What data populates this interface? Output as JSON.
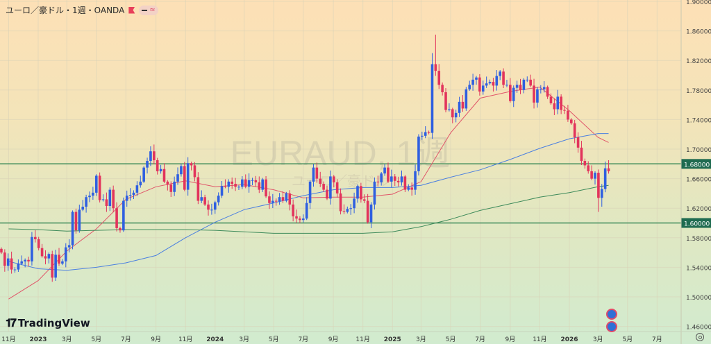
{
  "header": {
    "symbol_title": "ユーロ／豪ドル・1週・OANDA",
    "flag_icon": "flag-icon",
    "indicator_pill_icons": [
      "dash-icon",
      "approx-icon"
    ],
    "indicator_glyph": "≈"
  },
  "watermark": {
    "line1": "EURAUD, 1週",
    "line2": "ユーロ／豪ドル"
  },
  "logo": {
    "mark": "17",
    "text": "TradingView"
  },
  "colors": {
    "up": "#2f5fe0",
    "down": "#e2345c",
    "ma_fast": "#e0566a",
    "ma_mid": "#4a7fe0",
    "ma_slow": "#3d8a5a",
    "hline": "#3b8a58",
    "hline_label_bg": "#1f6b50"
  },
  "chart_data": {
    "type": "candlestick",
    "symbol": "EURAUD",
    "timeframe": "1週",
    "ylim": [
      1.457,
      1.902
    ],
    "y_ticks": [
      "1.90000",
      "1.86000",
      "1.82000",
      "1.78000",
      "1.74000",
      "1.70000",
      "1.66000",
      "1.62000",
      "1.58000",
      "1.54000",
      "1.50000",
      "1.46000"
    ],
    "x_ticks": [
      {
        "label": "11月",
        "date": "2022-11-01",
        "bold": false
      },
      {
        "label": "2023",
        "date": "2023-01-01",
        "bold": true
      },
      {
        "label": "3月",
        "date": "2023-03-01",
        "bold": false
      },
      {
        "label": "5月",
        "date": "2023-05-01",
        "bold": false
      },
      {
        "label": "7月",
        "date": "2023-07-01",
        "bold": false
      },
      {
        "label": "9月",
        "date": "2023-09-01",
        "bold": false
      },
      {
        "label": "11月",
        "date": "2023-11-01",
        "bold": false
      },
      {
        "label": "2024",
        "date": "2024-01-01",
        "bold": true
      },
      {
        "label": "3月",
        "date": "2024-03-01",
        "bold": false
      },
      {
        "label": "5月",
        "date": "2024-05-01",
        "bold": false
      },
      {
        "label": "7月",
        "date": "2024-07-01",
        "bold": false
      },
      {
        "label": "9月",
        "date": "2024-09-01",
        "bold": false
      },
      {
        "label": "11月",
        "date": "2024-11-01",
        "bold": false
      },
      {
        "label": "2025",
        "date": "2025-01-01",
        "bold": true
      },
      {
        "label": "3月",
        "date": "2025-03-01",
        "bold": false
      },
      {
        "label": "5月",
        "date": "2025-05-01",
        "bold": false
      },
      {
        "label": "7月",
        "date": "2025-07-01",
        "bold": false
      },
      {
        "label": "9月",
        "date": "2025-09-01",
        "bold": false
      },
      {
        "label": "11月",
        "date": "2025-11-01",
        "bold": false
      },
      {
        "label": "2026",
        "date": "2026-01-01",
        "bold": true
      },
      {
        "label": "3月",
        "date": "2026-03-01",
        "bold": false
      },
      {
        "label": "5月",
        "date": "2026-05-01",
        "bold": false
      },
      {
        "label": "7月",
        "date": "2026-07-01",
        "bold": false
      }
    ],
    "first_open": 1.565,
    "closes": [
      1.56,
      1.542,
      1.552,
      1.537,
      1.537,
      1.545,
      1.548,
      1.55,
      1.548,
      1.581,
      1.578,
      1.566,
      1.555,
      1.552,
      1.558,
      1.526,
      1.557,
      1.545,
      1.548,
      1.567,
      1.57,
      1.615,
      1.59,
      1.618,
      1.622,
      1.635,
      1.637,
      1.641,
      1.664,
      1.631,
      1.632,
      1.623,
      1.645,
      1.62,
      1.593,
      1.59,
      1.63,
      1.637,
      1.638,
      1.641,
      1.651,
      1.656,
      1.675,
      1.684,
      1.697,
      1.685,
      1.67,
      1.673,
      1.656,
      1.652,
      1.642,
      1.656,
      1.666,
      1.677,
      1.645,
      1.681,
      1.678,
      1.662,
      1.63,
      1.635,
      1.625,
      1.618,
      1.618,
      1.628,
      1.637,
      1.65,
      1.649,
      1.656,
      1.653,
      1.649,
      1.649,
      1.659,
      1.649,
      1.658,
      1.658,
      1.655,
      1.645,
      1.659,
      1.636,
      1.627,
      1.63,
      1.629,
      1.635,
      1.63,
      1.64,
      1.625,
      1.609,
      1.606,
      1.604,
      1.606,
      1.627,
      1.656,
      1.675,
      1.66,
      1.653,
      1.645,
      1.633,
      1.663,
      1.655,
      1.64,
      1.616,
      1.615,
      1.619,
      1.62,
      1.633,
      1.65,
      1.632,
      1.63,
      1.601,
      1.625,
      1.656,
      1.655,
      1.667,
      1.675,
      1.656,
      1.663,
      1.657,
      1.655,
      1.663,
      1.645,
      1.648,
      1.645,
      1.67,
      1.717,
      1.718,
      1.723,
      1.722,
      1.815,
      1.806,
      1.787,
      1.777,
      1.753,
      1.754,
      1.743,
      1.749,
      1.764,
      1.755,
      1.781,
      1.787,
      1.794,
      1.797,
      1.778,
      1.786,
      1.789,
      1.791,
      1.786,
      1.799,
      1.805,
      1.787,
      1.787,
      1.765,
      1.783,
      1.787,
      1.78,
      1.794,
      1.794,
      1.786,
      1.763,
      1.781,
      1.781,
      1.784,
      1.771,
      1.762,
      1.754,
      1.771,
      1.753,
      1.752,
      1.74,
      1.735,
      1.716,
      1.702,
      1.684,
      1.678,
      1.67,
      1.66,
      1.668,
      1.634,
      1.646,
      1.674,
      1.67
    ],
    "last_candle_date": "2026-03-23",
    "wick_extremes": [
      {
        "from_end": 53,
        "high": 1.83
      },
      {
        "from_end": 52,
        "high": 1.855
      },
      {
        "from_end": 4,
        "low": 1.615
      },
      {
        "from_end": 3,
        "low": 1.622
      },
      {
        "from_end": 1,
        "high": 1.685
      }
    ],
    "moving_averages": [
      {
        "key": "ma_fast",
        "dates": [
          "2022-11-01",
          "2023-01-01",
          "2023-03-01",
          "2023-05-01",
          "2023-07-01",
          "2023-09-01",
          "2023-11-01",
          "2024-01-01",
          "2024-03-01",
          "2024-05-01",
          "2024-07-01",
          "2024-09-01",
          "2024-11-01",
          "2025-01-01",
          "2025-03-01",
          "2025-05-01",
          "2025-07-01",
          "2025-09-01",
          "2025-11-01",
          "2026-01-01",
          "2026-03-01",
          "2026-03-23"
        ],
        "values": [
          1.497,
          1.522,
          1.562,
          1.592,
          1.632,
          1.649,
          1.657,
          1.649,
          1.652,
          1.645,
          1.634,
          1.635,
          1.635,
          1.639,
          1.656,
          1.722,
          1.769,
          1.778,
          1.784,
          1.752,
          1.716,
          1.709
        ]
      },
      {
        "key": "ma_mid",
        "dates": [
          "2022-11-01",
          "2023-01-01",
          "2023-03-01",
          "2023-05-01",
          "2023-07-01",
          "2023-09-01",
          "2023-11-01",
          "2024-01-01",
          "2024-03-01",
          "2024-05-01",
          "2024-07-01",
          "2024-09-01",
          "2024-11-01",
          "2025-01-01",
          "2025-03-01",
          "2025-05-01",
          "2025-07-01",
          "2025-09-01",
          "2025-11-01",
          "2026-01-01",
          "2026-03-01",
          "2026-03-23"
        ],
        "values": [
          1.548,
          1.538,
          1.536,
          1.54,
          1.546,
          1.556,
          1.58,
          1.601,
          1.618,
          1.627,
          1.637,
          1.645,
          1.648,
          1.648,
          1.651,
          1.662,
          1.672,
          1.686,
          1.701,
          1.714,
          1.721,
          1.721
        ]
      },
      {
        "key": "ma_slow",
        "dates": [
          "2022-11-01",
          "2023-01-01",
          "2023-03-01",
          "2023-05-01",
          "2023-07-01",
          "2023-09-01",
          "2023-11-01",
          "2024-01-01",
          "2024-03-01",
          "2024-05-01",
          "2024-07-01",
          "2024-09-01",
          "2024-11-01",
          "2025-01-01",
          "2025-03-01",
          "2025-05-01",
          "2025-07-01",
          "2025-09-01",
          "2025-11-01",
          "2026-01-01",
          "2026-03-01",
          "2026-03-23"
        ],
        "values": [
          1.592,
          1.591,
          1.589,
          1.59,
          1.591,
          1.591,
          1.591,
          1.59,
          1.588,
          1.586,
          1.586,
          1.586,
          1.586,
          1.588,
          1.595,
          1.605,
          1.617,
          1.626,
          1.635,
          1.641,
          1.649,
          1.651
        ]
      }
    ],
    "horizontal_lines": [
      {
        "value": 1.68,
        "label": "1.68000"
      },
      {
        "value": 1.6,
        "label": "1.60000"
      }
    ]
  },
  "events": [
    {
      "icon": "economic-event-icon"
    },
    {
      "icon": "dividend-event-icon"
    }
  ],
  "axis": {
    "settings_icon": "gear-icon"
  }
}
